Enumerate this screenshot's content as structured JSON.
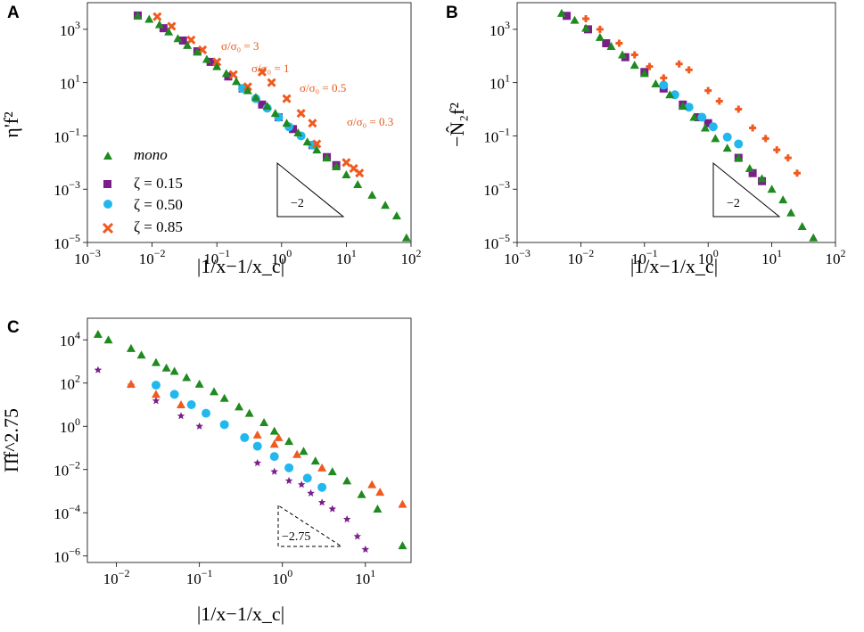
{
  "colors": {
    "mono": "#1f8a1f",
    "zeta015": "#7a1f8a",
    "zeta050": "#22b8ee",
    "zeta085": "#f05a1e",
    "annot": "#e8591a"
  },
  "chart_data": [
    {
      "panel": "A",
      "type": "scatter",
      "xlabel": "|1/x−1/x_c|",
      "ylabel": "η'f²",
      "xscale": "log",
      "yscale": "log",
      "xlim_exp": [
        -3,
        2
      ],
      "ylim_exp": [
        -5,
        4
      ],
      "xticks": [
        "10^-3",
        "10^-2",
        "10^-1",
        "10^0",
        "10^1",
        "10^2"
      ],
      "yticks": [
        "10^-5",
        "10^-3",
        "10^-1",
        "10^1",
        "10^3"
      ],
      "legend": [
        "mono",
        "ζ = 0.15",
        "ζ = 0.50",
        "ζ = 0.85"
      ],
      "slope_label": "−2",
      "annotations": [
        "σ/σ₀ = 3",
        "σ/σ₀ = 1",
        "σ/σ₀ = 0.5",
        "σ/σ₀ = 0.3"
      ],
      "series": [
        {
          "name": "mono",
          "points": [
            [
              0.006,
              3200
            ],
            [
              0.009,
              2400
            ],
            [
              0.013,
              1500
            ],
            [
              0.018,
              800
            ],
            [
              0.025,
              450
            ],
            [
              0.035,
              250
            ],
            [
              0.05,
              140
            ],
            [
              0.07,
              75
            ],
            [
              0.1,
              40
            ],
            [
              0.14,
              22
            ],
            [
              0.2,
              11
            ],
            [
              0.3,
              5
            ],
            [
              0.4,
              2.8
            ],
            [
              0.6,
              1.3
            ],
            [
              0.8,
              0.7
            ],
            [
              1.2,
              0.3
            ],
            [
              1.8,
              0.13
            ],
            [
              2.5,
              0.06
            ],
            [
              3.5,
              0.03
            ],
            [
              5,
              0.015
            ],
            [
              7,
              0.007
            ],
            [
              10,
              0.0035
            ],
            [
              15,
              0.0015
            ],
            [
              25,
              0.0006
            ],
            [
              40,
              0.00025
            ],
            [
              60,
              0.0001
            ],
            [
              85,
              1.5e-05
            ]
          ]
        },
        {
          "name": "ζ = 0.15",
          "points": [
            [
              0.006,
              3300
            ],
            [
              0.015,
              1100
            ],
            [
              0.03,
              380
            ],
            [
              0.05,
              150
            ],
            [
              0.08,
              60
            ],
            [
              0.15,
              17
            ],
            [
              0.25,
              6
            ],
            [
              0.5,
              1.5
            ],
            [
              0.9,
              0.5
            ],
            [
              1.5,
              0.18
            ],
            [
              3,
              0.045
            ],
            [
              5,
              0.016
            ],
            [
              7,
              0.008
            ]
          ]
        },
        {
          "name": "ζ = 0.50",
          "points": [
            [
              0.25,
              6
            ],
            [
              0.4,
              2.5
            ],
            [
              0.6,
              1.1
            ],
            [
              0.9,
              0.5
            ],
            [
              1.3,
              0.22
            ],
            [
              2,
              0.1
            ],
            [
              3,
              0.045
            ]
          ]
        },
        {
          "name": "ζ = 0.85",
          "points": [
            [
              0.012,
              3000
            ],
            [
              0.02,
              1300
            ],
            [
              0.04,
              400
            ],
            [
              0.06,
              170
            ],
            [
              0.1,
              60
            ],
            [
              0.18,
              20
            ],
            [
              0.3,
              7
            ],
            [
              0.5,
              25
            ],
            [
              0.7,
              10
            ],
            [
              1.2,
              2.5
            ],
            [
              2,
              0.7
            ],
            [
              3,
              0.3
            ],
            [
              3.5,
              0.05
            ],
            [
              10,
              0.01
            ],
            [
              13,
              0.006
            ],
            [
              16,
              0.004
            ]
          ]
        }
      ]
    },
    {
      "panel": "B",
      "type": "scatter",
      "xlabel": "|1/x−1/x_c|",
      "ylabel": "−N̂₂f²",
      "xscale": "log",
      "yscale": "log",
      "xlim_exp": [
        -3,
        2
      ],
      "ylim_exp": [
        -5,
        4
      ],
      "xticks": [
        "10^-3",
        "10^-2",
        "10^-1",
        "10^0",
        "10^1",
        "10^2"
      ],
      "yticks": [
        "10^-5",
        "10^-3",
        "10^-1",
        "10^1",
        "10^3"
      ],
      "slope_label": "−2",
      "series": [
        {
          "name": "mono",
          "points": [
            [
              0.005,
              4000
            ],
            [
              0.008,
              2200
            ],
            [
              0.012,
              1100
            ],
            [
              0.02,
              500
            ],
            [
              0.03,
              230
            ],
            [
              0.045,
              110
            ],
            [
              0.07,
              45
            ],
            [
              0.1,
              22
            ],
            [
              0.15,
              9
            ],
            [
              0.25,
              3.5
            ],
            [
              0.4,
              1.3
            ],
            [
              0.6,
              0.5
            ],
            [
              0.9,
              0.2
            ],
            [
              1.3,
              0.08
            ],
            [
              2,
              0.035
            ],
            [
              3,
              0.015
            ],
            [
              4.5,
              0.006
            ],
            [
              7,
              0.0025
            ],
            [
              10,
              0.001
            ],
            [
              15,
              0.0004
            ],
            [
              20,
              0.00013
            ],
            [
              30,
              4e-05
            ],
            [
              45,
              1.5e-05
            ]
          ]
        },
        {
          "name": "ζ = 0.15",
          "points": [
            [
              0.006,
              3200
            ],
            [
              0.013,
              1000
            ],
            [
              0.025,
              300
            ],
            [
              0.05,
              90
            ],
            [
              0.1,
              25
            ],
            [
              0.2,
              6
            ],
            [
              0.4,
              1.5
            ],
            [
              0.7,
              0.5
            ],
            [
              1,
              0.3
            ],
            [
              3,
              0.015
            ],
            [
              5,
              0.004
            ],
            [
              7,
              0.002
            ]
          ]
        },
        {
          "name": "ζ = 0.50",
          "points": [
            [
              0.2,
              8
            ],
            [
              0.3,
              3.5
            ],
            [
              0.5,
              1.2
            ],
            [
              0.8,
              0.5
            ],
            [
              1.2,
              0.22
            ],
            [
              2,
              0.09
            ],
            [
              3,
              0.05
            ]
          ]
        },
        {
          "name": "ζ = 0.85",
          "points": [
            [
              0.012,
              2500
            ],
            [
              0.02,
              1000
            ],
            [
              0.04,
              300
            ],
            [
              0.07,
              110
            ],
            [
              0.12,
              40
            ],
            [
              0.2,
              15
            ],
            [
              0.35,
              50
            ],
            [
              0.5,
              30
            ],
            [
              1,
              5
            ],
            [
              1.5,
              2
            ],
            [
              3,
              1
            ],
            [
              5,
              0.2
            ],
            [
              8,
              0.08
            ],
            [
              12,
              0.03
            ],
            [
              18,
              0.015
            ],
            [
              25,
              0.004
            ]
          ]
        }
      ]
    },
    {
      "panel": "C",
      "type": "scatter",
      "xlabel": "|1/x−1/x_c|",
      "ylabel": "Π̂f^2.75",
      "xscale": "log",
      "yscale": "log",
      "xlim_exp": [
        -2.35,
        1.55
      ],
      "ylim_exp": [
        -6.3,
        5
      ],
      "xticks": [
        "10^-2",
        "10^-1",
        "10^0",
        "10^1"
      ],
      "yticks": [
        "10^-6",
        "10^-4",
        "10^-2",
        "10^0",
        "10^2",
        "10^4"
      ],
      "slope_label": "−2.75",
      "series": [
        {
          "name": "mono",
          "points": [
            [
              0.006,
              18000
            ],
            [
              0.008,
              10000
            ],
            [
              0.015,
              4000
            ],
            [
              0.02,
              2000
            ],
            [
              0.03,
              900
            ],
            [
              0.04,
              500
            ],
            [
              0.05,
              350
            ],
            [
              0.07,
              180
            ],
            [
              0.1,
              90
            ],
            [
              0.15,
              40
            ],
            [
              0.2,
              20
            ],
            [
              0.3,
              8
            ],
            [
              0.4,
              4
            ],
            [
              0.6,
              1.5
            ],
            [
              0.8,
              0.6
            ],
            [
              1.2,
              0.2
            ],
            [
              1.8,
              0.07
            ],
            [
              2.5,
              0.025
            ],
            [
              4,
              0.008
            ],
            [
              6,
              0.003
            ],
            [
              9,
              0.0007
            ],
            [
              14,
              0.00015
            ],
            [
              28,
              3e-06
            ]
          ]
        },
        {
          "name": "ζ = 0.15",
          "points": [
            [
              0.006,
              400
            ],
            [
              0.015,
              80
            ],
            [
              0.03,
              15
            ],
            [
              0.06,
              3
            ],
            [
              0.1,
              1
            ],
            [
              0.5,
              0.02
            ],
            [
              0.8,
              0.008
            ],
            [
              1.2,
              0.003
            ],
            [
              1.7,
              0.002
            ],
            [
              2.2,
              0.0008
            ],
            [
              3,
              0.0003
            ],
            [
              4,
              0.00015
            ],
            [
              6,
              5e-05
            ],
            [
              8,
              8e-06
            ],
            [
              10,
              2e-06
            ]
          ]
        },
        {
          "name": "ζ = 0.50",
          "points": [
            [
              0.03,
              80
            ],
            [
              0.05,
              30
            ],
            [
              0.08,
              10
            ],
            [
              0.12,
              4
            ],
            [
              0.2,
              1.2
            ],
            [
              0.35,
              0.3
            ],
            [
              0.5,
              0.12
            ],
            [
              0.8,
              0.04
            ],
            [
              1.2,
              0.012
            ],
            [
              2,
              0.004
            ],
            [
              3,
              0.0015
            ]
          ]
        },
        {
          "name": "ζ = 0.85",
          "points": [
            [
              0.015,
              90
            ],
            [
              0.03,
              30
            ],
            [
              0.06,
              10
            ],
            [
              0.5,
              0.4
            ],
            [
              0.8,
              0.15
            ],
            [
              0.9,
              0.3
            ],
            [
              1.5,
              0.05
            ],
            [
              3,
              0.012
            ],
            [
              12,
              0.002
            ],
            [
              15,
              0.0009
            ],
            [
              28,
              0.00025
            ]
          ]
        }
      ]
    }
  ]
}
